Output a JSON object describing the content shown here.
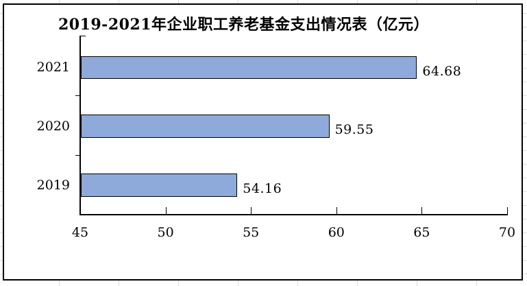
{
  "chart_data": {
    "type": "bar",
    "orientation": "horizontal",
    "title": "2019-2021年企业职工养老基金支出情况表（亿元）",
    "categories": [
      "2021",
      "2020",
      "2019"
    ],
    "values": [
      64.68,
      59.55,
      54.16
    ],
    "data_labels": [
      "64.68",
      "59.55",
      "54.16"
    ],
    "xlim": [
      45,
      70
    ],
    "x_ticks": [
      45,
      50,
      55,
      60,
      65,
      70
    ],
    "x_tick_labels": [
      "45",
      "50",
      "55",
      "60",
      "65",
      "70"
    ],
    "xlabel": "",
    "ylabel": "",
    "legend": "none",
    "grid": false,
    "bar_fill_color": "#8EAADB",
    "bar_border_color": "#000000",
    "axis_color": "#000000",
    "chart_border_color": "#000000",
    "background_color": "#FFFFFF"
  }
}
